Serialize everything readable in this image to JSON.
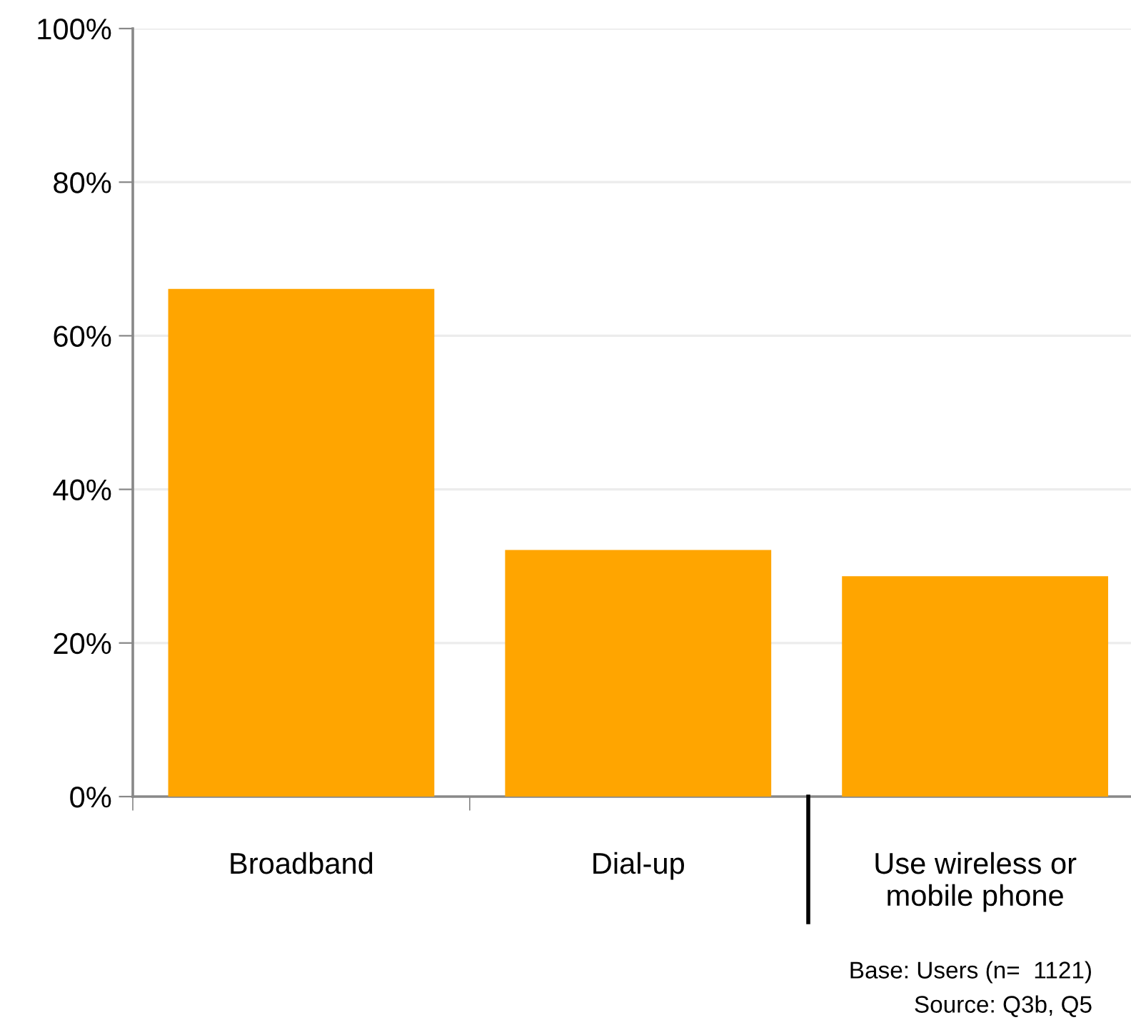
{
  "chart_data": {
    "type": "bar",
    "categories": [
      "Broadband",
      "Dial-up",
      "Use wireless or\nmobile phone"
    ],
    "values": [
      66.1,
      32.1,
      28.7
    ],
    "color": "#ffa500",
    "ylim": [
      0,
      100
    ],
    "yticks": [
      {
        "value": 0,
        "label": "0%"
      },
      {
        "value": 20,
        "label": "20%"
      },
      {
        "value": 40,
        "label": "40%"
      },
      {
        "value": 60,
        "label": "60%"
      },
      {
        "value": 80,
        "label": "80%"
      },
      {
        "value": 100,
        "label": "100%"
      }
    ],
    "grid": "y",
    "annotations": [
      "Base: Users (n=  1121)",
      "Source: Q3b, Q5"
    ]
  }
}
